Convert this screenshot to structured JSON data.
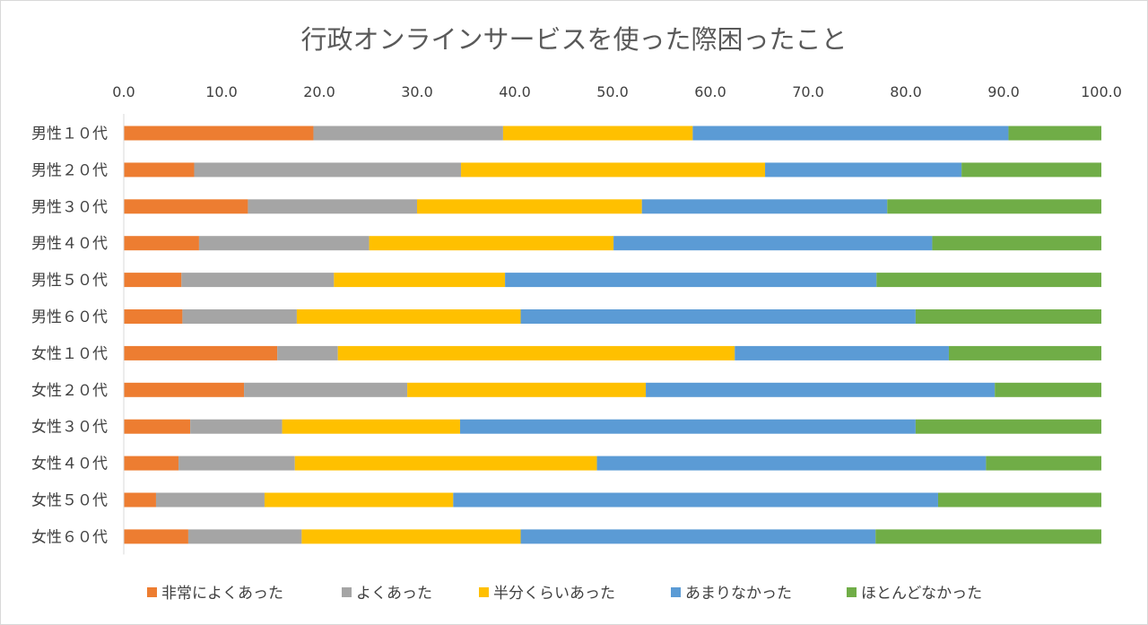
{
  "chart_data": {
    "type": "bar",
    "orientation": "horizontal",
    "stacked": true,
    "title": "行政オンラインサービスを使った際困ったこと",
    "xlim": [
      0,
      100
    ],
    "x_ticks": [
      "0.0",
      "10.0",
      "20.0",
      "30.0",
      "40.0",
      "50.0",
      "60.0",
      "70.0",
      "80.0",
      "90.0",
      "100.0"
    ],
    "x_axis_position": "top",
    "grid": false,
    "legend_position": "bottom",
    "categories": [
      "男性１０代",
      "男性２０代",
      "男性３０代",
      "男性４０代",
      "男性５０代",
      "男性６０代",
      "女性１０代",
      "女性２０代",
      "女性３０代",
      "女性４０代",
      "女性５０代",
      "女性６０代"
    ],
    "series": [
      {
        "name": "非常によくあった",
        "color": "#ed7d31",
        "values": [
          19.4,
          7.2,
          12.7,
          7.7,
          5.9,
          6.0,
          15.7,
          12.3,
          6.8,
          5.6,
          3.3,
          6.6
        ]
      },
      {
        "name": "よくあった",
        "color": "#a5a5a5",
        "values": [
          19.4,
          27.3,
          17.3,
          17.4,
          15.6,
          11.7,
          6.2,
          16.7,
          9.4,
          11.9,
          11.1,
          11.6
        ]
      },
      {
        "name": "半分くらいあった",
        "color": "#ffc000",
        "values": [
          19.4,
          31.1,
          23.0,
          25.0,
          17.5,
          22.9,
          40.6,
          24.4,
          18.2,
          30.9,
          19.3,
          22.4
        ]
      },
      {
        "name": "あまりなかった",
        "color": "#5b9bd5",
        "values": [
          32.3,
          20.1,
          25.1,
          32.6,
          38.0,
          40.4,
          21.9,
          35.7,
          46.6,
          39.8,
          49.6,
          36.3
        ]
      },
      {
        "name": "ほとんどなかった",
        "color": "#70ad47",
        "values": [
          9.5,
          14.3,
          21.9,
          17.3,
          23.0,
          19.0,
          15.6,
          10.9,
          19.0,
          11.8,
          16.7,
          23.1
        ]
      }
    ]
  }
}
